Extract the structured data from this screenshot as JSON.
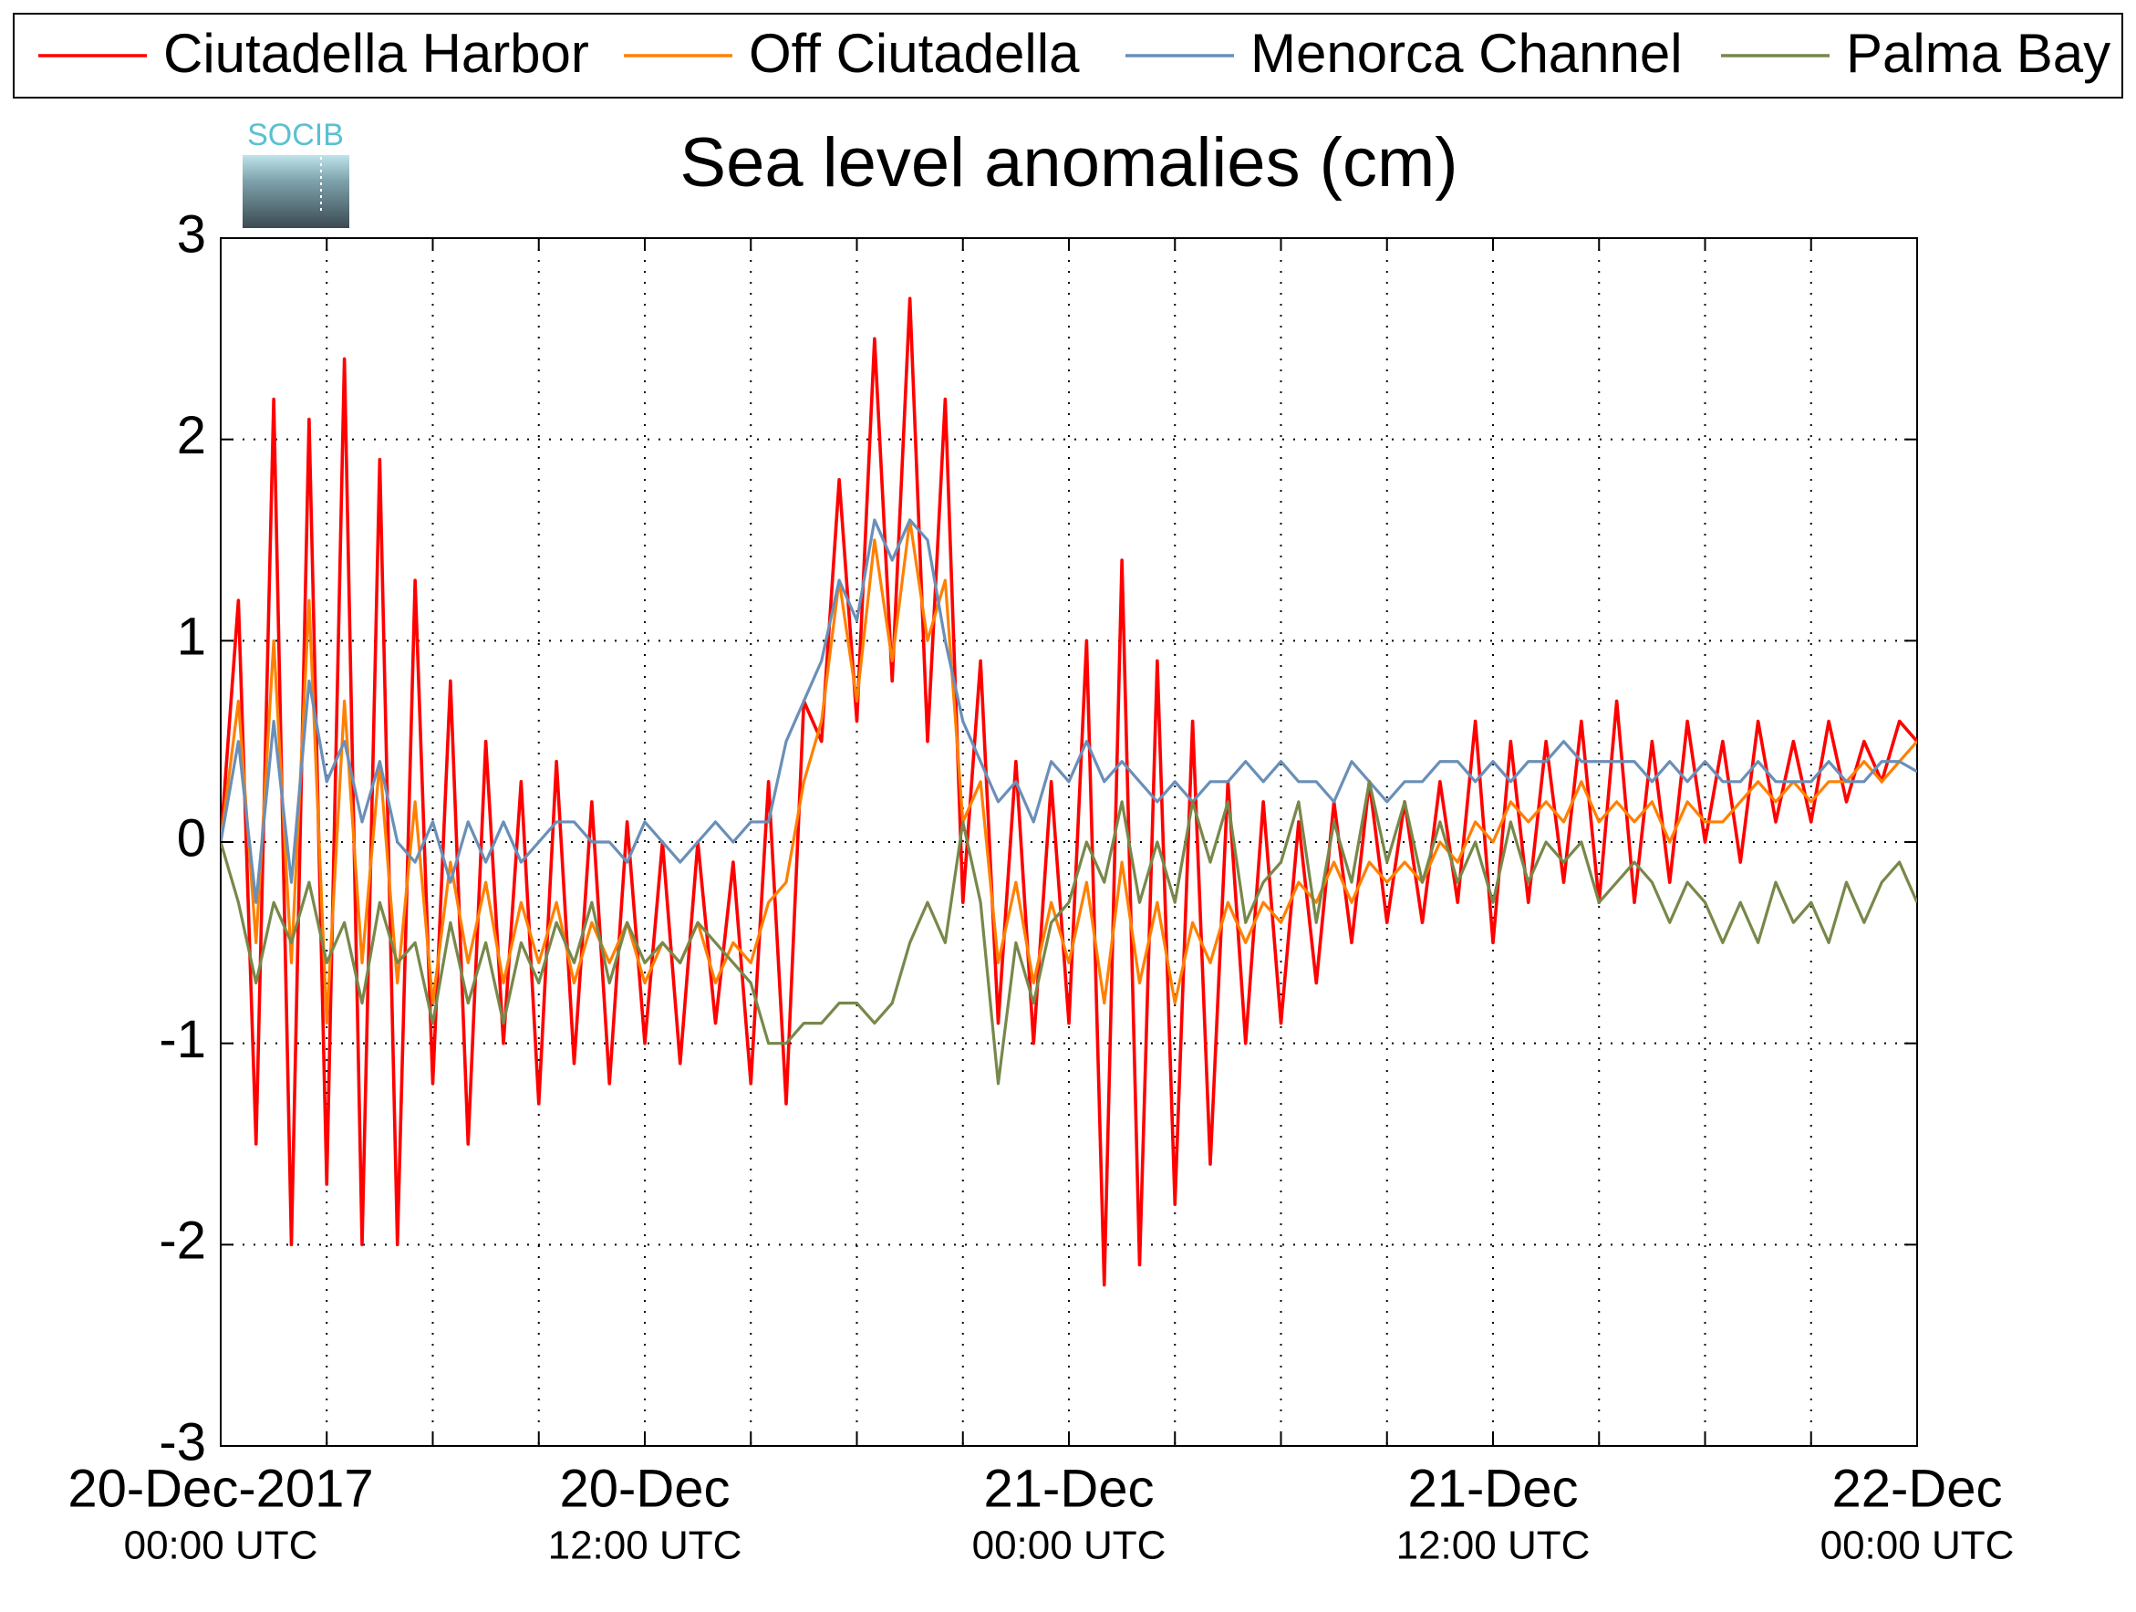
{
  "chart_data": {
    "type": "line",
    "title": "Sea level anomalies (cm)",
    "logo": "SOCIB",
    "legend": "top",
    "grid": true,
    "xlim": [
      0,
      48
    ],
    "xticks": [
      {
        "value": 0,
        "label": "20-Dec-2017",
        "sublabel": "00:00 UTC"
      },
      {
        "value": 12,
        "label": "20-Dec",
        "sublabel": "12:00 UTC"
      },
      {
        "value": 24,
        "label": "21-Dec",
        "sublabel": "00:00 UTC"
      },
      {
        "value": 36,
        "label": "21-Dec",
        "sublabel": "12:00 UTC"
      },
      {
        "value": 48,
        "label": "22-Dec",
        "sublabel": "00:00 UTC"
      }
    ],
    "xminorticks": [
      3,
      6,
      9,
      15,
      18,
      21,
      27,
      30,
      33,
      39,
      42,
      45
    ],
    "ylim": [
      -3,
      3
    ],
    "yticks": [
      -3,
      -2,
      -1,
      0,
      1,
      2,
      3
    ],
    "x": [
      0,
      0.5,
      1,
      1.5,
      2,
      2.5,
      3,
      3.5,
      4,
      4.5,
      5,
      5.5,
      6,
      6.5,
      7,
      7.5,
      8,
      8.5,
      9,
      9.5,
      10,
      10.5,
      11,
      11.5,
      12,
      12.5,
      13,
      13.5,
      14,
      14.5,
      15,
      15.5,
      16,
      16.5,
      17,
      17.5,
      18,
      18.5,
      19,
      19.5,
      20,
      20.5,
      21,
      21.5,
      22,
      22.5,
      23,
      23.5,
      24,
      24.5,
      25,
      25.5,
      26,
      26.5,
      27,
      27.5,
      28,
      28.5,
      29,
      29.5,
      30,
      30.5,
      31,
      31.5,
      32,
      32.5,
      33,
      33.5,
      34,
      34.5,
      35,
      35.5,
      36,
      36.5,
      37,
      37.5,
      38,
      38.5,
      39,
      39.5,
      40,
      40.5,
      41,
      41.5,
      42,
      42.5,
      43,
      43.5,
      44,
      44.5,
      45,
      45.5,
      46,
      46.5,
      47,
      47.5,
      48
    ],
    "series": [
      {
        "name": "Ciutadella Harbor",
        "color": "#ff0000",
        "values": [
          0,
          1.2,
          -1.5,
          2.2,
          -2.0,
          2.1,
          -1.7,
          2.4,
          -2.0,
          1.9,
          -2.0,
          1.3,
          -1.2,
          0.8,
          -1.5,
          0.5,
          -1.0,
          0.3,
          -1.3,
          0.4,
          -1.1,
          0.2,
          -1.2,
          0.1,
          -1.0,
          0.0,
          -1.1,
          0.0,
          -0.9,
          -0.1,
          -1.2,
          0.3,
          -1.3,
          0.7,
          0.5,
          1.8,
          0.6,
          2.5,
          0.8,
          2.7,
          0.5,
          2.2,
          -0.3,
          0.9,
          -0.9,
          0.4,
          -1.0,
          0.3,
          -0.9,
          1.0,
          -2.2,
          1.4,
          -2.1,
          0.9,
          -1.8,
          0.6,
          -1.6,
          0.3,
          -1.0,
          0.2,
          -0.9,
          0.1,
          -0.7,
          0.2,
          -0.5,
          0.3,
          -0.4,
          0.2,
          -0.4,
          0.3,
          -0.3,
          0.6,
          -0.5,
          0.5,
          -0.3,
          0.5,
          -0.2,
          0.6,
          -0.3,
          0.7,
          -0.3,
          0.5,
          -0.2,
          0.6,
          0.0,
          0.5,
          -0.1,
          0.6,
          0.1,
          0.5,
          0.1,
          0.6,
          0.2,
          0.5,
          0.3,
          0.6,
          0.5
        ]
      },
      {
        "name": "Off Ciutadella",
        "color": "#ff8000",
        "values": [
          0,
          0.7,
          -0.5,
          1.0,
          -0.6,
          1.2,
          -0.9,
          0.7,
          -0.6,
          0.4,
          -0.7,
          0.2,
          -0.8,
          -0.1,
          -0.6,
          -0.2,
          -0.7,
          -0.3,
          -0.6,
          -0.3,
          -0.7,
          -0.4,
          -0.6,
          -0.4,
          -0.7,
          -0.5,
          -0.6,
          -0.4,
          -0.7,
          -0.5,
          -0.6,
          -0.3,
          -0.2,
          0.3,
          0.6,
          1.3,
          0.7,
          1.5,
          0.9,
          1.6,
          1.0,
          1.3,
          0.1,
          0.3,
          -0.6,
          -0.2,
          -0.7,
          -0.3,
          -0.6,
          -0.2,
          -0.8,
          -0.1,
          -0.7,
          -0.3,
          -0.8,
          -0.4,
          -0.6,
          -0.3,
          -0.5,
          -0.3,
          -0.4,
          -0.2,
          -0.3,
          -0.1,
          -0.3,
          -0.1,
          -0.2,
          -0.1,
          -0.2,
          0.0,
          -0.1,
          0.1,
          0.0,
          0.2,
          0.1,
          0.2,
          0.1,
          0.3,
          0.1,
          0.2,
          0.1,
          0.2,
          0.0,
          0.2,
          0.1,
          0.1,
          0.2,
          0.3,
          0.2,
          0.3,
          0.2,
          0.3,
          0.3,
          0.4,
          0.3,
          0.4,
          0.5
        ]
      },
      {
        "name": "Menorca Channel",
        "color": "#6a8fb8",
        "values": [
          0,
          0.5,
          -0.3,
          0.6,
          -0.2,
          0.8,
          0.3,
          0.5,
          0.1,
          0.4,
          0.0,
          -0.1,
          0.1,
          -0.2,
          0.1,
          -0.1,
          0.1,
          -0.1,
          0.0,
          0.1,
          0.1,
          0.0,
          0.0,
          -0.1,
          0.1,
          0.0,
          -0.1,
          0.0,
          0.1,
          0.0,
          0.1,
          0.1,
          0.5,
          0.7,
          0.9,
          1.3,
          1.1,
          1.6,
          1.4,
          1.6,
          1.5,
          1.0,
          0.6,
          0.4,
          0.2,
          0.3,
          0.1,
          0.4,
          0.3,
          0.5,
          0.3,
          0.4,
          0.3,
          0.2,
          0.3,
          0.2,
          0.3,
          0.3,
          0.4,
          0.3,
          0.4,
          0.3,
          0.3,
          0.2,
          0.4,
          0.3,
          0.2,
          0.3,
          0.3,
          0.4,
          0.4,
          0.3,
          0.4,
          0.3,
          0.4,
          0.4,
          0.5,
          0.4,
          0.4,
          0.4,
          0.4,
          0.3,
          0.4,
          0.3,
          0.4,
          0.3,
          0.3,
          0.4,
          0.3,
          0.3,
          0.3,
          0.4,
          0.3,
          0.3,
          0.4,
          0.4,
          0.35
        ]
      },
      {
        "name": "Palma Bay",
        "color": "#77884a",
        "values": [
          0,
          -0.3,
          -0.7,
          -0.3,
          -0.5,
          -0.2,
          -0.6,
          -0.4,
          -0.8,
          -0.3,
          -0.6,
          -0.5,
          -0.9,
          -0.4,
          -0.8,
          -0.5,
          -0.9,
          -0.5,
          -0.7,
          -0.4,
          -0.6,
          -0.3,
          -0.7,
          -0.4,
          -0.6,
          -0.5,
          -0.6,
          -0.4,
          -0.5,
          -0.6,
          -0.7,
          -1.0,
          -1.0,
          -0.9,
          -0.9,
          -0.8,
          -0.8,
          -0.9,
          -0.8,
          -0.5,
          -0.3,
          -0.5,
          0.1,
          -0.3,
          -1.2,
          -0.5,
          -0.8,
          -0.4,
          -0.3,
          0.0,
          -0.2,
          0.2,
          -0.3,
          0.0,
          -0.3,
          0.2,
          -0.1,
          0.2,
          -0.4,
          -0.2,
          -0.1,
          0.2,
          -0.4,
          0.1,
          -0.2,
          0.3,
          -0.1,
          0.2,
          -0.2,
          0.1,
          -0.2,
          0.0,
          -0.3,
          0.1,
          -0.2,
          0.0,
          -0.1,
          0.0,
          -0.3,
          -0.2,
          -0.1,
          -0.2,
          -0.4,
          -0.2,
          -0.3,
          -0.5,
          -0.3,
          -0.5,
          -0.2,
          -0.4,
          -0.3,
          -0.5,
          -0.2,
          -0.4,
          -0.2,
          -0.1,
          -0.3
        ]
      }
    ]
  }
}
